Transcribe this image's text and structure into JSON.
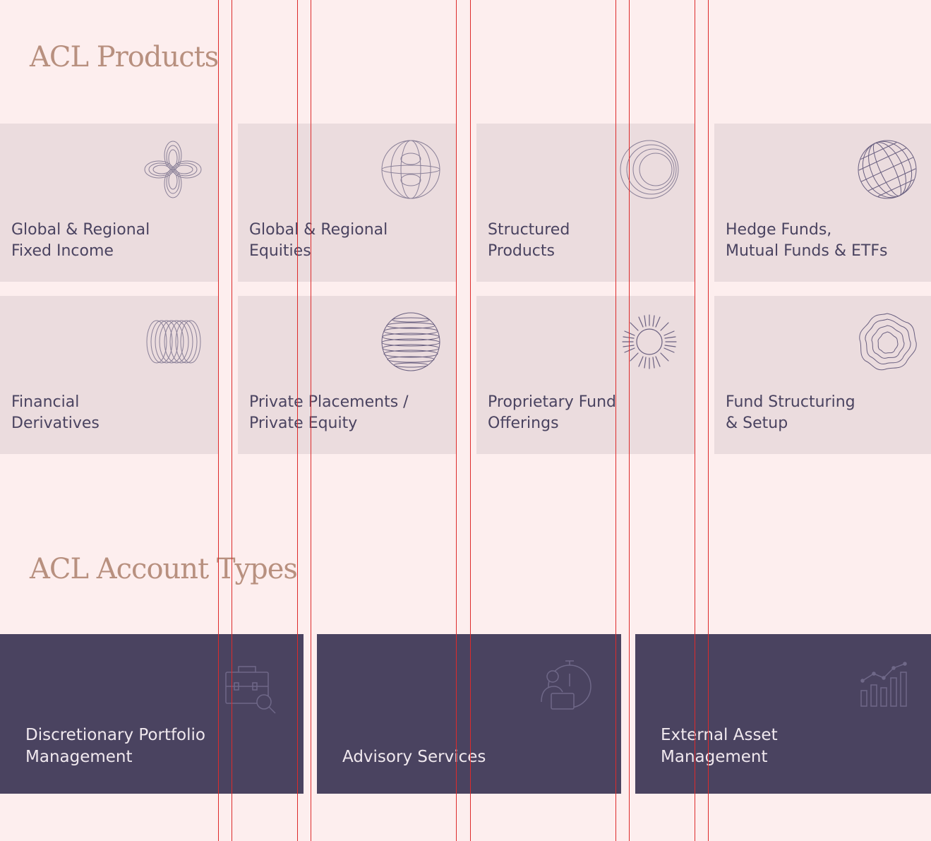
{
  "products": {
    "title": "ACL Products",
    "items": [
      {
        "label": "Global & Regional\nFixed Income",
        "icon": "clover-icon"
      },
      {
        "label": "Global & Regional\nEquities",
        "icon": "sphere-icon"
      },
      {
        "label": "Structured\nProducts",
        "icon": "crescent-icon"
      },
      {
        "label": "Hedge Funds,\nMutual Funds & ETFs",
        "icon": "globe-icon"
      },
      {
        "label": "Financial\nDerivatives",
        "icon": "ring-coil-icon"
      },
      {
        "label": "Private Placements /\nPrivate Equity",
        "icon": "striped-sphere-icon"
      },
      {
        "label": "Proprietary Fund\nOfferings",
        "icon": "sunburst-icon"
      },
      {
        "label": "Fund Structuring\n& Setup",
        "icon": "wavy-blob-icon"
      }
    ]
  },
  "account_types": {
    "title": "ACL Account Types",
    "items": [
      {
        "label": "Discretionary Portfolio\nManagement",
        "icon": "briefcase-search-icon"
      },
      {
        "label": "Advisory Services",
        "icon": "advisor-stopwatch-icon"
      },
      {
        "label": "External Asset\nManagement",
        "icon": "bar-chart-trend-icon"
      }
    ]
  },
  "colors": {
    "background": "#fdeeee",
    "product_card": "#ebdcde",
    "account_card": "#4a4360",
    "heading": "#b8907f",
    "product_text": "#4a4360",
    "account_text": "#f0e8ee",
    "guide_lines": "#dd2b2b"
  }
}
